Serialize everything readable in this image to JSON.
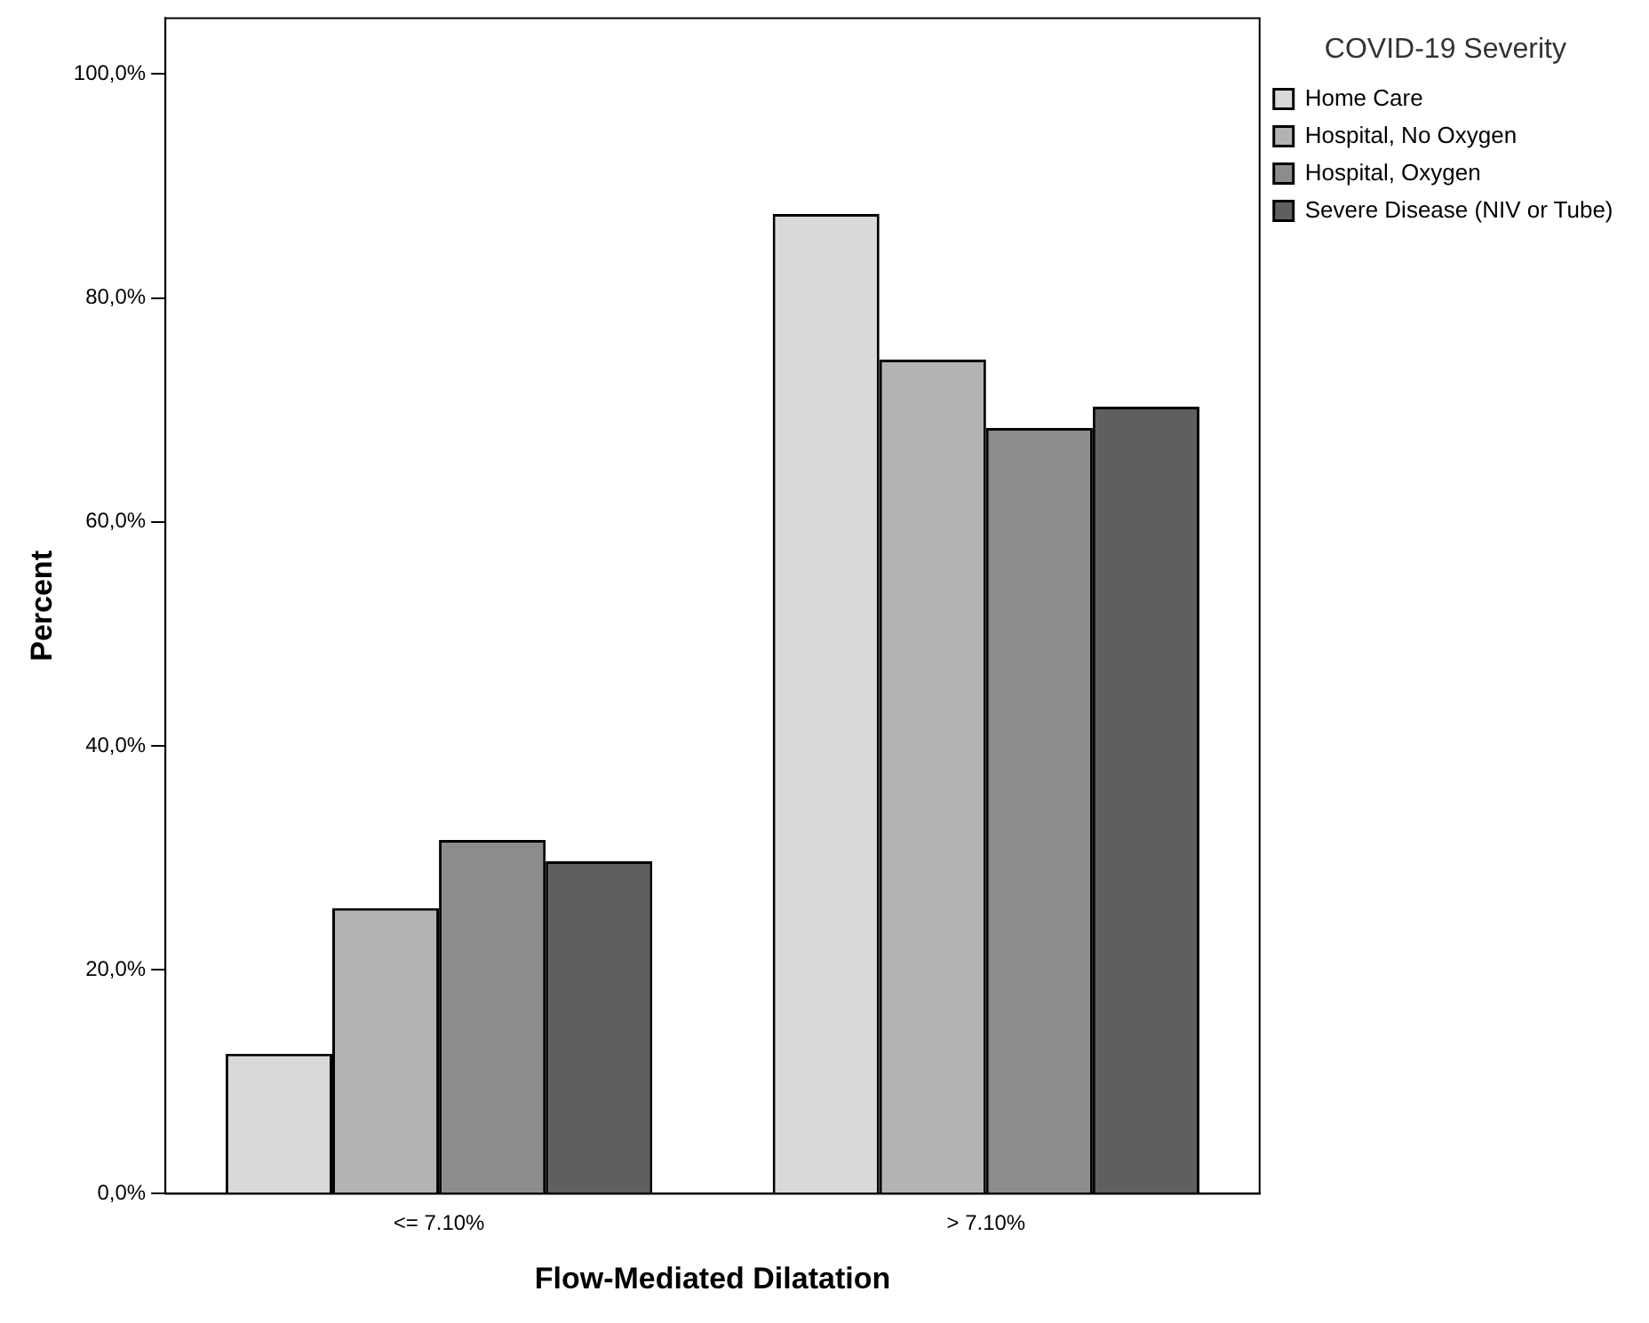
{
  "chart_data": {
    "type": "bar",
    "xlabel": "Flow-Mediated Dilatation",
    "ylabel": "Percent",
    "legend_title": "COVID-19 Severity",
    "categories": [
      "<= 7.10%",
      "> 7.10%"
    ],
    "series": [
      {
        "name": "Home Care",
        "color": "#d9d9d9",
        "values": [
          12.5,
          87.5
        ]
      },
      {
        "name": "Hospital, No Oxygen",
        "color": "#b3b3b3",
        "values": [
          25.5,
          74.5
        ]
      },
      {
        "name": "Hospital, Oxygen",
        "color": "#8c8c8c",
        "values": [
          31.6,
          68.4
        ]
      },
      {
        "name": "Severe Disease (NIV or Tube)",
        "color": "#5f5f5f",
        "values": [
          29.7,
          70.3
        ]
      }
    ],
    "ylim": [
      0,
      105
    ],
    "yticks": [
      {
        "value": 0,
        "label": "0,0%"
      },
      {
        "value": 20,
        "label": "20,0%"
      },
      {
        "value": 40,
        "label": "40,0%"
      },
      {
        "value": 60,
        "label": "60,0%"
      },
      {
        "value": 80,
        "label": "80,0%"
      },
      {
        "value": 100,
        "label": "100,0%"
      }
    ],
    "grid": false,
    "legend": "top right"
  }
}
